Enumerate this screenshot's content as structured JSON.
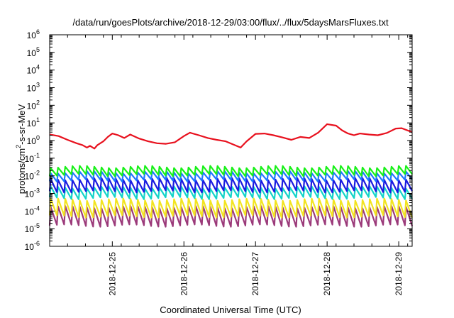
{
  "chart_data": {
    "type": "line",
    "title": "/data/run/goesPlots/archive/2018-12-29/03:00/flux/../flux/5daysMarsFluxes.txt",
    "xlabel": "Coordinated Universal Time (UTC)",
    "ylabel": {
      "prefix": "protons/cm",
      "sup": "2",
      "suffix": "-s-sr-MeV"
    },
    "y_scale": "log",
    "ylim": [
      1e-06,
      1000000.0
    ],
    "y_ticks": [
      {
        "base": "10",
        "exp": "6"
      },
      {
        "base": "10",
        "exp": "5"
      },
      {
        "base": "10",
        "exp": "4"
      },
      {
        "base": "10",
        "exp": "3"
      },
      {
        "base": "10",
        "exp": "2"
      },
      {
        "base": "10",
        "exp": "1"
      },
      {
        "base": "10",
        "exp": "0"
      },
      {
        "base": "10",
        "exp": "-1"
      },
      {
        "base": "10",
        "exp": "-2"
      },
      {
        "base": "10",
        "exp": "-3"
      },
      {
        "base": "10",
        "exp": "-4"
      },
      {
        "base": "10",
        "exp": "-5"
      },
      {
        "base": "10",
        "exp": "-6"
      }
    ],
    "xlim": [
      "2018-12-24T03:00",
      "2018-12-29T04:30"
    ],
    "x_ticks": [
      "2018-12-25",
      "2018-12-26",
      "2018-12-27",
      "2018-12-28",
      "2018-12-29"
    ],
    "grid": false,
    "legend": "none",
    "series": [
      {
        "color": "#e8111e",
        "x": [
          "2018-12-24T03:00",
          "2018-12-24T06:00",
          "2018-12-24T09:00",
          "2018-12-24T12:00",
          "2018-12-24T14:00",
          "2018-12-24T15:30",
          "2018-12-24T16:30",
          "2018-12-24T18:00",
          "2018-12-24T19:00",
          "2018-12-24T21:00",
          "2018-12-24T22:30",
          "2018-12-25T00:00",
          "2018-12-25T02:00",
          "2018-12-25T04:00",
          "2018-12-25T06:00",
          "2018-12-25T09:00",
          "2018-12-25T12:00",
          "2018-12-25T15:00",
          "2018-12-25T18:00",
          "2018-12-25T21:00",
          "2018-12-26T00:00",
          "2018-12-26T02:00",
          "2018-12-26T05:00",
          "2018-12-26T08:00",
          "2018-12-26T11:00",
          "2018-12-26T14:00",
          "2018-12-26T17:00",
          "2018-12-26T19:00",
          "2018-12-26T21:00",
          "2018-12-27T00:00",
          "2018-12-27T03:00",
          "2018-12-27T06:00",
          "2018-12-27T09:00",
          "2018-12-27T12:00",
          "2018-12-27T15:00",
          "2018-12-27T18:00",
          "2018-12-27T21:00",
          "2018-12-28T00:00",
          "2018-12-28T03:00",
          "2018-12-28T05:00",
          "2018-12-28T07:00",
          "2018-12-28T09:00",
          "2018-12-28T11:00",
          "2018-12-28T14:00",
          "2018-12-28T17:00",
          "2018-12-28T20:00",
          "2018-12-28T23:00",
          "2018-12-29T01:00",
          "2018-12-29T04:30"
        ],
        "values": [
          2.2,
          1.8,
          1.1,
          0.7,
          0.55,
          0.4,
          0.5,
          0.35,
          0.55,
          0.9,
          1.6,
          2.5,
          2.0,
          1.4,
          2.2,
          1.3,
          0.9,
          0.7,
          0.65,
          0.8,
          1.8,
          2.8,
          2.0,
          1.4,
          1.1,
          0.9,
          0.55,
          0.4,
          0.9,
          2.4,
          2.5,
          2.0,
          1.5,
          1.1,
          1.6,
          1.4,
          2.8,
          8.5,
          7.0,
          3.8,
          2.5,
          2.0,
          2.5,
          2.2,
          2.0,
          2.7,
          4.8,
          5.0,
          3.0
        ]
      }
    ],
    "periodic_series": [
      {
        "color": "#19f019",
        "high": 0.032,
        "low": 0.011
      },
      {
        "color": "#1e78ff",
        "high": 0.016,
        "low": 0.0055
      },
      {
        "color": "#1a1ae0",
        "high": 0.0065,
        "low": 0.0013
      },
      {
        "color": "#13d4c8",
        "high": 0.0022,
        "low": 0.00055
      },
      {
        "color": "#f2e421",
        "high": 0.00045,
        "low": 5e-05
      },
      {
        "color": "#9b3a7a",
        "high": 0.00017,
        "low": 1.5e-05
      }
    ]
  }
}
